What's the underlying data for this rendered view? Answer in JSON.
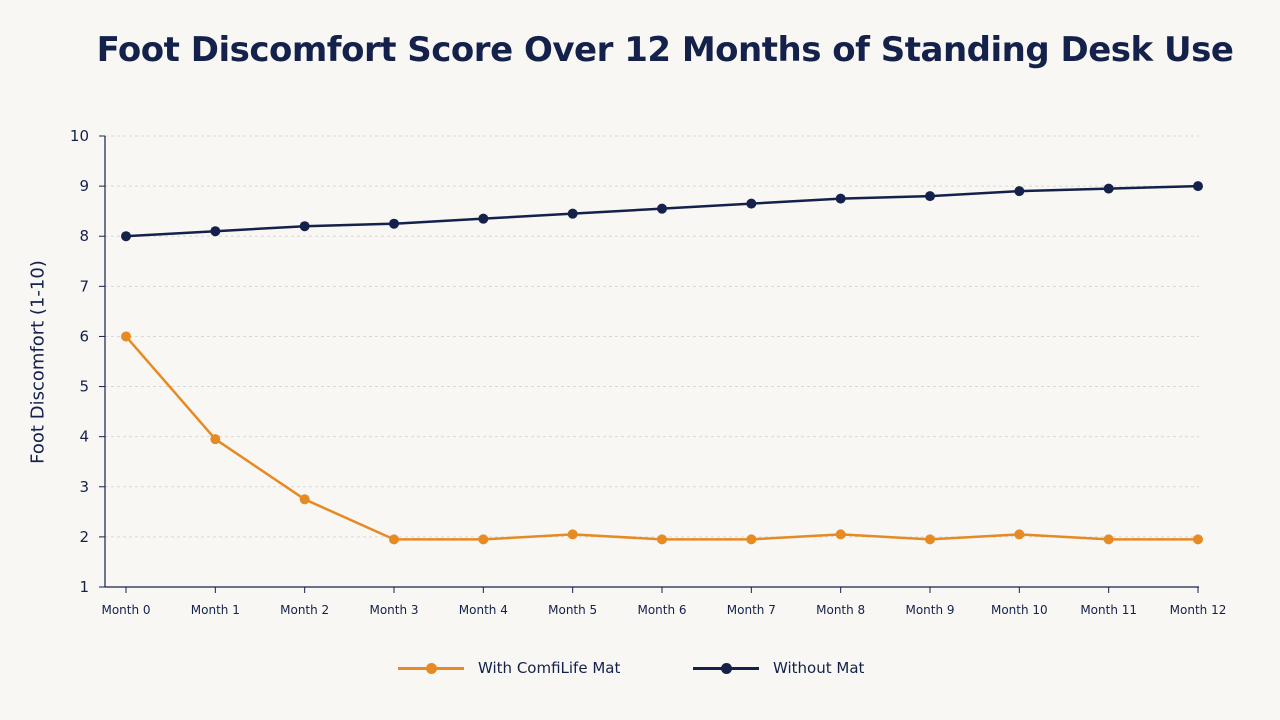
{
  "chart_data": {
    "type": "line",
    "title": "Foot Discomfort Score Over 12 Months of Standing Desk Use",
    "xlabel": "",
    "ylabel": "Foot Discomfort (1-10)",
    "categories": [
      "Month 0",
      "Month 1",
      "Month 2",
      "Month 3",
      "Month 4",
      "Month 5",
      "Month 6",
      "Month 7",
      "Month 8",
      "Month 9",
      "Month 10",
      "Month 11",
      "Month 12"
    ],
    "ylim": [
      1,
      10
    ],
    "yticks": [
      "1",
      "2",
      "3",
      "4",
      "5",
      "6",
      "7",
      "8",
      "9",
      "10"
    ],
    "grid": "horizontal dashed",
    "legend_position": "bottom",
    "series": [
      {
        "name": "With ComfiLife Mat",
        "color": "#e68a24",
        "values": [
          6.0,
          3.95,
          2.75,
          1.95,
          1.95,
          2.05,
          1.95,
          1.95,
          2.05,
          1.95,
          2.05,
          1.95,
          1.95
        ]
      },
      {
        "name": "Without Mat",
        "color": "#14214a",
        "values": [
          8.0,
          8.1,
          8.2,
          8.25,
          8.35,
          8.45,
          8.55,
          8.65,
          8.75,
          8.8,
          8.9,
          8.95,
          9.0
        ]
      }
    ]
  }
}
